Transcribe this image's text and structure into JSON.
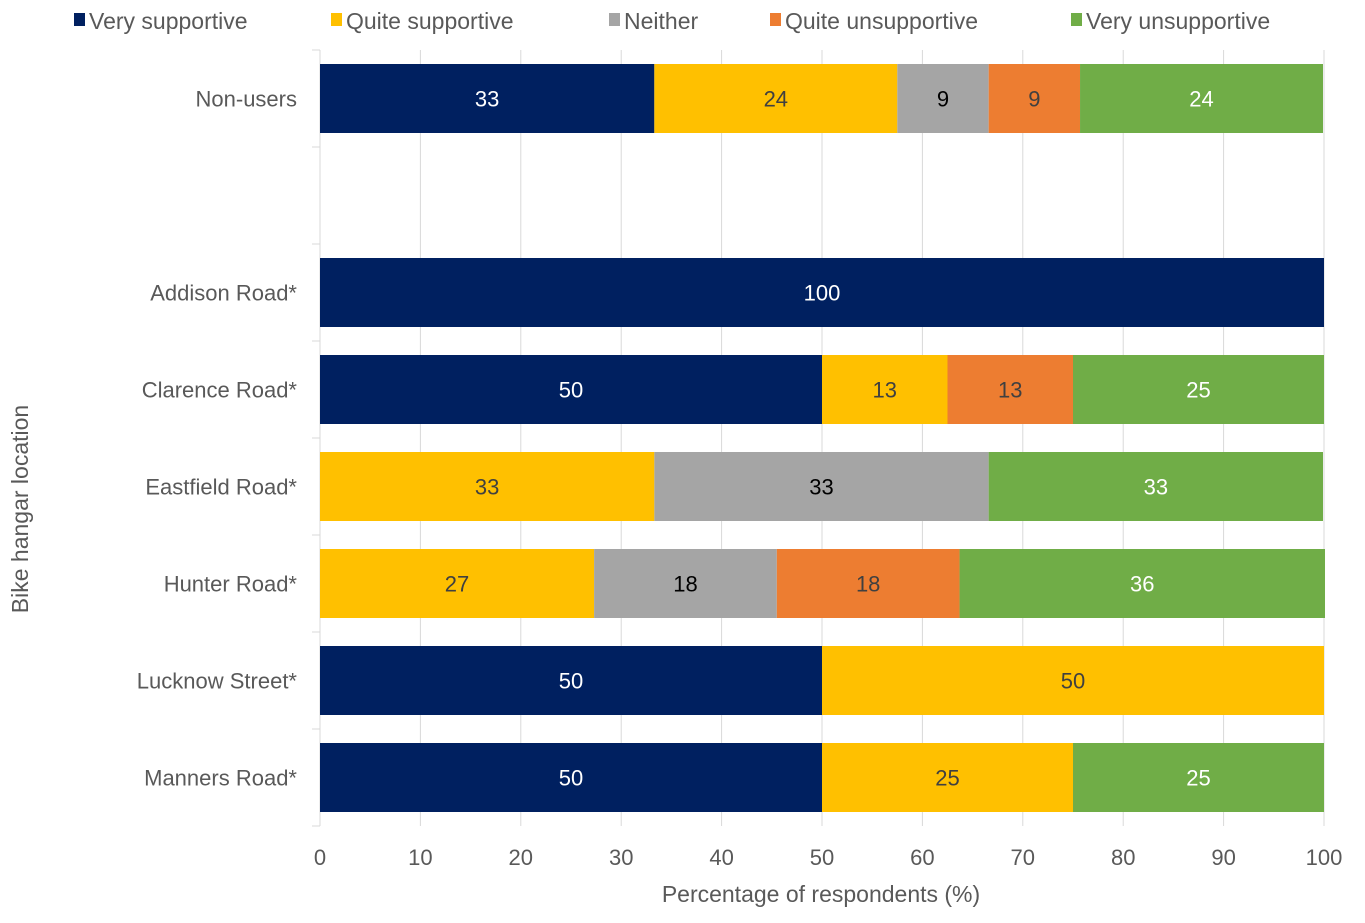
{
  "chart_data": {
    "type": "bar",
    "orientation": "horizontal",
    "stacked": true,
    "title": "",
    "xlabel": "Percentage of respondents (%)",
    "ylabel": "Bike hangar location",
    "xlim": [
      0,
      100
    ],
    "xticks": [
      0,
      10,
      20,
      30,
      40,
      50,
      60,
      70,
      80,
      90,
      100
    ],
    "grid": "vertical",
    "legend_position": "top",
    "categories": [
      "Non-users",
      "",
      "Addison Road*",
      "Clarence Road*",
      "Eastfield Road*",
      "Hunter Road*",
      "Lucknow Street*",
      "Manners Road*"
    ],
    "series": [
      {
        "name": "Very supportive",
        "color": "#002060",
        "label_color": "#ffffff",
        "values": [
          33.3,
          null,
          100,
          50,
          0,
          0,
          50,
          50
        ],
        "labels": [
          "33",
          "",
          "100",
          "50",
          "",
          "",
          "50",
          "50"
        ]
      },
      {
        "name": "Quite supportive",
        "color": "#ffc000",
        "label_color": "#404040",
        "values": [
          24.2,
          null,
          0,
          12.5,
          33.3,
          27.3,
          50,
          25
        ],
        "labels": [
          "24",
          "",
          "",
          "13",
          "33",
          "27",
          "50",
          "25"
        ]
      },
      {
        "name": "Neither",
        "color": "#a5a5a5",
        "label_color": "#000000",
        "values": [
          9.1,
          null,
          0,
          0,
          33.3,
          18.2,
          0,
          0
        ],
        "labels": [
          "9",
          "",
          "",
          "",
          "33",
          "18",
          "",
          ""
        ]
      },
      {
        "name": "Quite unsupportive",
        "color": "#ed7d31",
        "label_color": "#404040",
        "values": [
          9.1,
          null,
          0,
          12.5,
          0,
          18.2,
          0,
          0
        ],
        "labels": [
          "9",
          "",
          "",
          "13",
          "",
          "18",
          "",
          ""
        ]
      },
      {
        "name": "Very unsupportive",
        "color": "#70ad47",
        "label_color": "#ffffff",
        "values": [
          24.2,
          null,
          0,
          25,
          33.3,
          36.4,
          0,
          25
        ],
        "labels": [
          "24",
          "",
          "",
          "25",
          "33",
          "36",
          "",
          "25"
        ]
      }
    ]
  }
}
